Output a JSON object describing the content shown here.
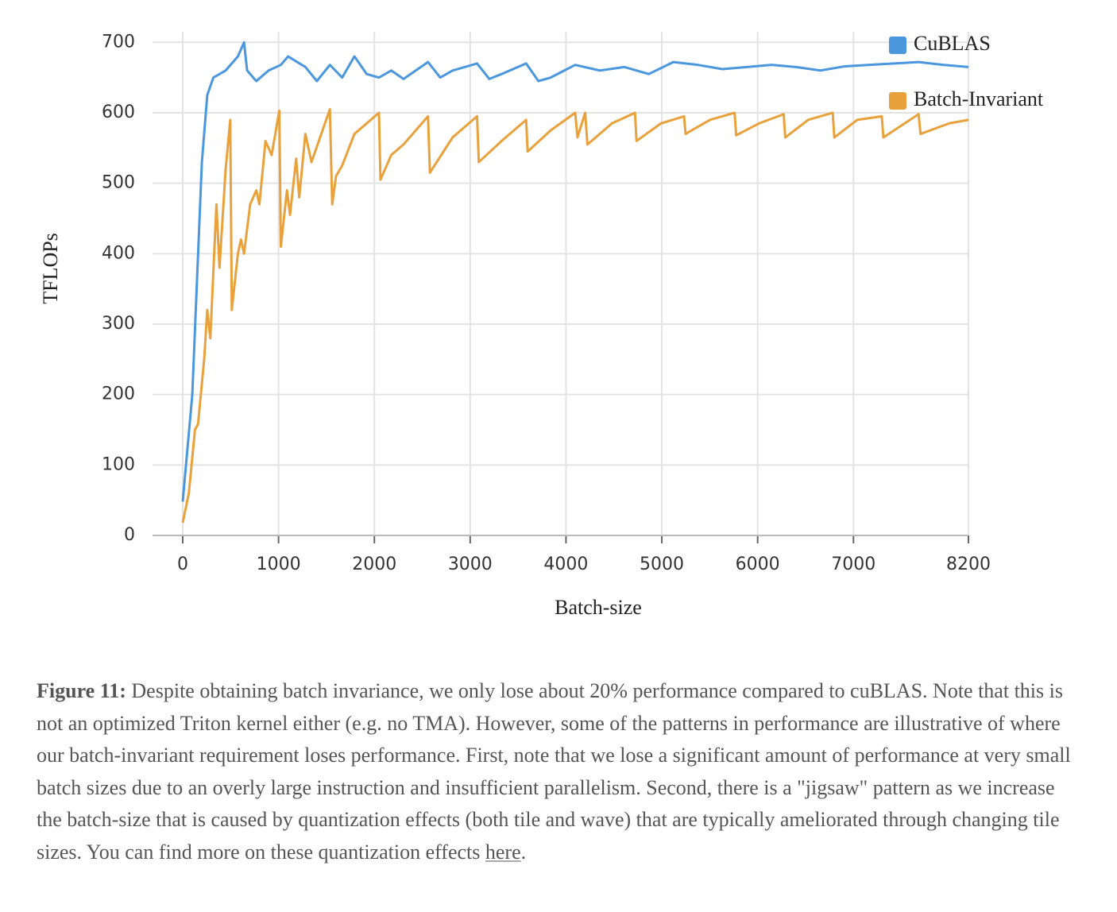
{
  "chart_data": {
    "type": "line",
    "xlabel": "Batch-size",
    "ylabel": "TFLOPs",
    "xlim": [
      -315,
      8200
    ],
    "ylim": [
      0,
      715
    ],
    "xticks": [
      0,
      1000,
      2000,
      3000,
      4000,
      5000,
      6000,
      7000,
      8200
    ],
    "yticks": [
      0,
      100,
      200,
      300,
      400,
      500,
      600,
      700
    ],
    "grid": true,
    "legend": "upper right",
    "series": [
      {
        "name": "CuBLAS",
        "color": "#4a97dd",
        "x": [
          0,
          100,
          200,
          256,
          320,
          448,
          576,
          640,
          672,
          768,
          896,
          1024,
          1100,
          1280,
          1400,
          1536,
          1664,
          1792,
          1920,
          2048,
          2176,
          2304,
          2560,
          2688,
          2816,
          3072,
          3200,
          3328,
          3584,
          3712,
          3840,
          4096,
          4352,
          4608,
          4864,
          5120,
          5376,
          5632,
          5888,
          6144,
          6400,
          6656,
          6912,
          7168,
          7424,
          7680,
          7936,
          8200
        ],
        "values": [
          48,
          200,
          530,
          625,
          650,
          660,
          680,
          700,
          660,
          645,
          660,
          668,
          680,
          665,
          645,
          668,
          650,
          680,
          655,
          650,
          660,
          648,
          672,
          650,
          660,
          670,
          648,
          655,
          670,
          645,
          650,
          668,
          660,
          665,
          655,
          672,
          668,
          662,
          665,
          668,
          665,
          660,
          666,
          668,
          670,
          672,
          668,
          665
        ]
      },
      {
        "name": "Batch-Invariant",
        "color": "#e9a23b",
        "x": [
          0,
          64,
          128,
          160,
          224,
          256,
          288,
          352,
          384,
          448,
          496,
          512,
          576,
          608,
          640,
          704,
          768,
          800,
          864,
          928,
          1008,
          1024,
          1088,
          1120,
          1184,
          1216,
          1280,
          1344,
          1536,
          1560,
          1600,
          1664,
          1792,
          2048,
          2064,
          2176,
          2304,
          2560,
          2580,
          2816,
          3072,
          3090,
          3328,
          3584,
          3600,
          3840,
          4096,
          4120,
          4200,
          4224,
          4480,
          4720,
          4736,
          4992,
          5232,
          5248,
          5504,
          5760,
          5776,
          6016,
          6272,
          6288,
          6528,
          6784,
          6800,
          7040,
          7296,
          7312,
          7680,
          7700,
          8000,
          8200
        ],
        "values": [
          18,
          60,
          150,
          158,
          250,
          320,
          280,
          470,
          380,
          520,
          590,
          320,
          400,
          420,
          400,
          470,
          490,
          470,
          560,
          540,
          603,
          410,
          490,
          455,
          535,
          480,
          570,
          530,
          605,
          470,
          510,
          525,
          570,
          600,
          505,
          540,
          555,
          595,
          515,
          565,
          595,
          530,
          560,
          590,
          545,
          575,
          600,
          565,
          600,
          555,
          585,
          600,
          560,
          585,
          595,
          570,
          590,
          600,
          568,
          585,
          598,
          565,
          590,
          600,
          565,
          590,
          595,
          565,
          598,
          570,
          585,
          590
        ]
      }
    ]
  },
  "caption": {
    "label": "Figure 11:",
    "text": " Despite obtaining batch invariance, we only lose about 20% performance compared to cuBLAS. Note that this is not an optimized Triton kernel either (e.g. no TMA). However, some of the patterns in performance are illustrative of where our batch-invariant requirement loses performance. First, note that we lose a significant amount of performance at very small batch sizes due to an overly large instruction and insufficient parallelism. Second, there is a \"jigsaw\" pattern as we increase the batch-size that is caused by quantization effects (both tile and wave) that are typically ameliorated through changing tile sizes. You can find more on these quantization effects ",
    "link": "here",
    "end": "."
  }
}
